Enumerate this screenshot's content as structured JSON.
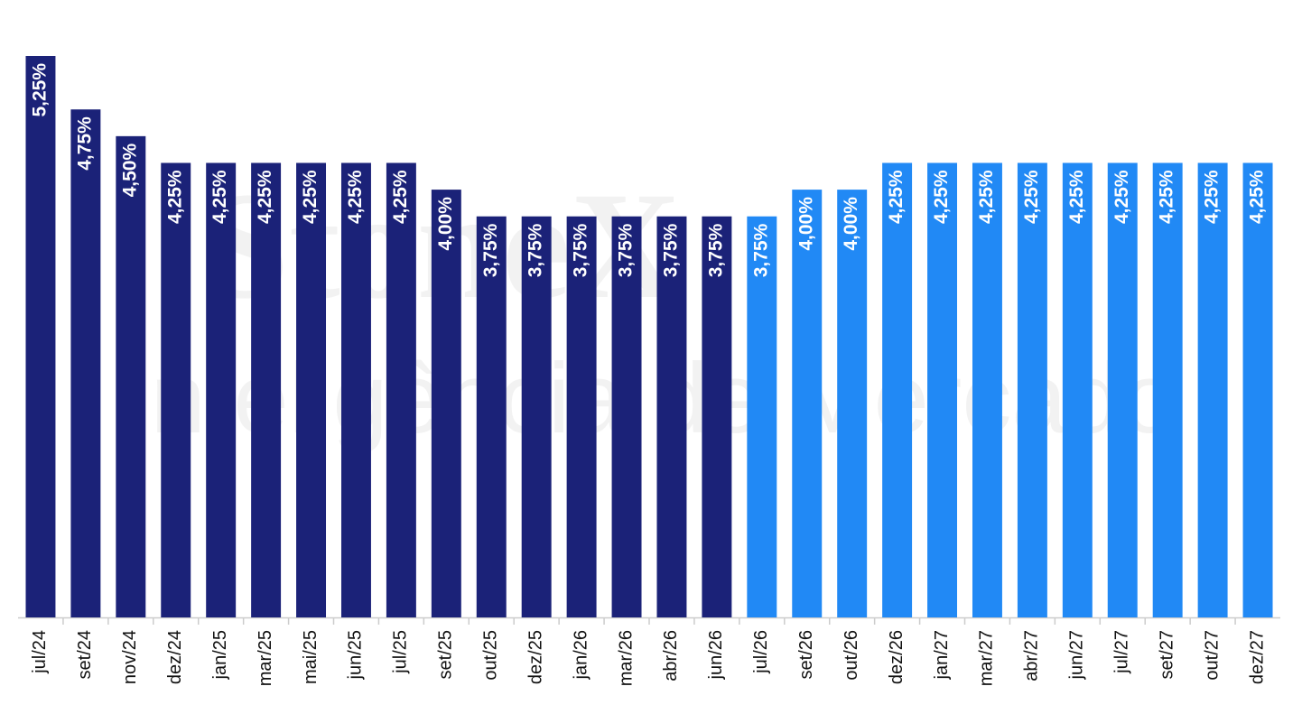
{
  "chart_data": {
    "type": "bar",
    "watermark": [
      "StoneX",
      "Inteligência de Mercado"
    ],
    "categories": [
      "jul/24",
      "set/24",
      "nov/24",
      "dez/24",
      "jan/25",
      "mar/25",
      "mai/25",
      "jun/25",
      "jul/25",
      "set/25",
      "out/25",
      "dez/25",
      "jan/26",
      "mar/26",
      "abr/26",
      "jun/26",
      "jul/26",
      "set/26",
      "out/26",
      "dez/26",
      "jan/27",
      "mar/27",
      "abr/27",
      "jun/27",
      "jul/27",
      "set/27",
      "out/27",
      "dez/27"
    ],
    "values": [
      5.25,
      4.75,
      4.5,
      4.25,
      4.25,
      4.25,
      4.25,
      4.25,
      4.25,
      4.0,
      3.75,
      3.75,
      3.75,
      3.75,
      3.75,
      3.75,
      3.75,
      4.0,
      4.0,
      4.25,
      4.25,
      4.25,
      4.25,
      4.25,
      4.25,
      4.25,
      4.25,
      4.25
    ],
    "value_labels": [
      "5,25%",
      "4,75%",
      "4,50%",
      "4,25%",
      "4,25%",
      "4,25%",
      "4,25%",
      "4,25%",
      "4,25%",
      "4,00%",
      "3,75%",
      "3,75%",
      "3,75%",
      "3,75%",
      "3,75%",
      "3,75%",
      "3,75%",
      "4,00%",
      "4,00%",
      "4,25%",
      "4,25%",
      "4,25%",
      "4,25%",
      "4,25%",
      "4,25%",
      "4,25%",
      "4,25%",
      "4,25%"
    ],
    "colors": [
      "#1b2278",
      "#1b2278",
      "#1b2278",
      "#1b2278",
      "#1b2278",
      "#1b2278",
      "#1b2278",
      "#1b2278",
      "#1b2278",
      "#1b2278",
      "#1b2278",
      "#1b2278",
      "#1b2278",
      "#1b2278",
      "#1b2278",
      "#1b2278",
      "#2189f5",
      "#2189f5",
      "#2189f5",
      "#2189f5",
      "#2189f5",
      "#2189f5",
      "#2189f5",
      "#2189f5",
      "#2189f5",
      "#2189f5",
      "#2189f5",
      "#2189f5"
    ],
    "ylim": [
      0,
      5.25
    ]
  }
}
